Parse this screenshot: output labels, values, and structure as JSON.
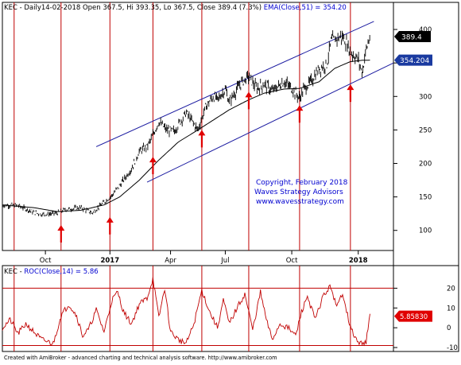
{
  "header_text": {
    "prefix": "KEC - Daily14-02-2018 Open 367.5, Hi 393.35, Lo 367.5, Close 389.4 (7.3%) ",
    "ema": "EMA(Close,51) = 354.20"
  },
  "roc_title": {
    "prefix": "KEC - ",
    "roc": "ROC(Close,14) = 5.86"
  },
  "copyright": [
    "Copyright, February 2018",
    "Waves Strategy Advisors",
    "www.wavesstrategy.com"
  ],
  "footer": "Created with AmiBroker - advanced charting and technical analysis software. http://www.amibroker.com",
  "colors": {
    "price": "#000000",
    "ema": "#000000",
    "channel": "#1a1aa0",
    "cycle_line": "#c00000",
    "arrow": "#e00000",
    "roc": "#c00000",
    "roc_level": "#c00000",
    "blue_text": "#0000d0",
    "last_price_tag": "#000000",
    "ema_tag": "#1a3aa0",
    "roc_tag": "#e00000"
  },
  "chart_data": [
    {
      "type": "line",
      "panel": "price",
      "title": "KEC - Daily14-02-2018 Open 367.5, Hi 393.35, Lo 367.5, Close 389.4 (7.3%) EMA(Close,51) = 354.20",
      "x_tick_labels": [
        "Oct",
        "2017",
        "Apr",
        "Jul",
        "Oct",
        "2018"
      ],
      "y_ticks": [
        100,
        150,
        200,
        250,
        300,
        350,
        400
      ],
      "ylim": [
        70,
        425
      ],
      "xlim": [
        0,
        100
      ],
      "price_anchors": {
        "x": [
          0,
          4,
          8,
          10,
          13,
          14,
          16,
          20,
          23,
          26,
          28,
          30,
          33,
          35,
          37,
          38,
          40,
          42,
          44,
          45,
          47,
          50,
          52,
          54,
          55,
          57,
          58,
          61,
          63,
          65,
          67,
          69,
          72,
          74,
          76,
          77,
          79,
          81,
          83,
          84,
          86,
          87,
          88,
          89,
          90,
          91,
          92,
          93,
          94
        ],
        "y": [
          138,
          137,
          127,
          124,
          125,
          126,
          131,
          134,
          126,
          142,
          152,
          167,
          192,
          218,
          225,
          236,
          262,
          250,
          248,
          258,
          276,
          250,
          285,
          300,
          295,
          311,
          292,
          320,
          330,
          312,
          318,
          308,
          322,
          312,
          297,
          310,
          323,
          342,
          348,
          382,
          388,
          389,
          380,
          366,
          361,
          355,
          335,
          370,
          389
        ]
      },
      "ema_anchors": {
        "x": [
          0,
          8,
          14,
          20,
          26,
          30,
          35,
          40,
          45,
          50,
          54,
          58,
          63,
          67,
          72,
          76,
          81,
          85,
          89,
          92,
          94
        ],
        "y": [
          138,
          134,
          128,
          130,
          138,
          150,
          175,
          205,
          232,
          250,
          265,
          280,
          295,
          305,
          311,
          312,
          322,
          342,
          352,
          354,
          354.2
        ]
      },
      "cycle_lines_x": [
        3,
        15,
        27.5,
        38.5,
        51,
        63,
        76,
        89
      ],
      "arrows": [
        {
          "x": 15,
          "y_tip": 108
        },
        {
          "x": 27.5,
          "y_tip": 120
        },
        {
          "x": 38.5,
          "y_tip": 210
        },
        {
          "x": 51,
          "y_tip": 250
        },
        {
          "x": 63,
          "y_tip": 307
        },
        {
          "x": 76,
          "y_tip": 287
        },
        {
          "x": 89,
          "y_tip": 318
        }
      ],
      "channel_upper": {
        "x": [
          24,
          95
        ],
        "y": [
          225,
          412
        ]
      },
      "channel_lower": {
        "x": [
          37,
          100
        ],
        "y": [
          172,
          350
        ]
      },
      "last_price": 389.4,
      "last_price_label": "389.4",
      "ema_value": 354.204,
      "ema_label": "354.204"
    },
    {
      "type": "line",
      "panel": "roc",
      "title": "KEC - ROC(Close,14) = 5.86",
      "y_ticks": [
        -10,
        0,
        10,
        20
      ],
      "ylim": [
        -12,
        27
      ],
      "xlim": [
        0,
        100
      ],
      "levels": [
        20,
        -9
      ],
      "roc_anchors": {
        "x": [
          0,
          2,
          4,
          6,
          8,
          10,
          13,
          15,
          17,
          19,
          20.5,
          22,
          24,
          26,
          28,
          29.5,
          31,
          33,
          35,
          37,
          38.5,
          40,
          41.5,
          43,
          45,
          47,
          49,
          51,
          53,
          55,
          56.5,
          58,
          60,
          62,
          64,
          66,
          67.5,
          69,
          71,
          73,
          75,
          76.5,
          78,
          80,
          82,
          84,
          85.5,
          87,
          89,
          91,
          93,
          94
        ],
        "y": [
          0,
          4,
          -3,
          2,
          -2,
          -6,
          -8,
          6,
          12,
          6,
          -4,
          -1,
          9,
          -2,
          14,
          18,
          8,
          2,
          12,
          15,
          25,
          5,
          20,
          -2,
          -6,
          -8,
          2,
          19,
          8,
          0,
          14,
          2,
          10,
          17,
          -1,
          18,
          4,
          -6,
          2,
          0,
          -4,
          8,
          16,
          4,
          16,
          21,
          10,
          18,
          0,
          -8,
          -7,
          5.86
        ]
      },
      "last_value": 5.86,
      "last_label": "5.85830"
    }
  ]
}
